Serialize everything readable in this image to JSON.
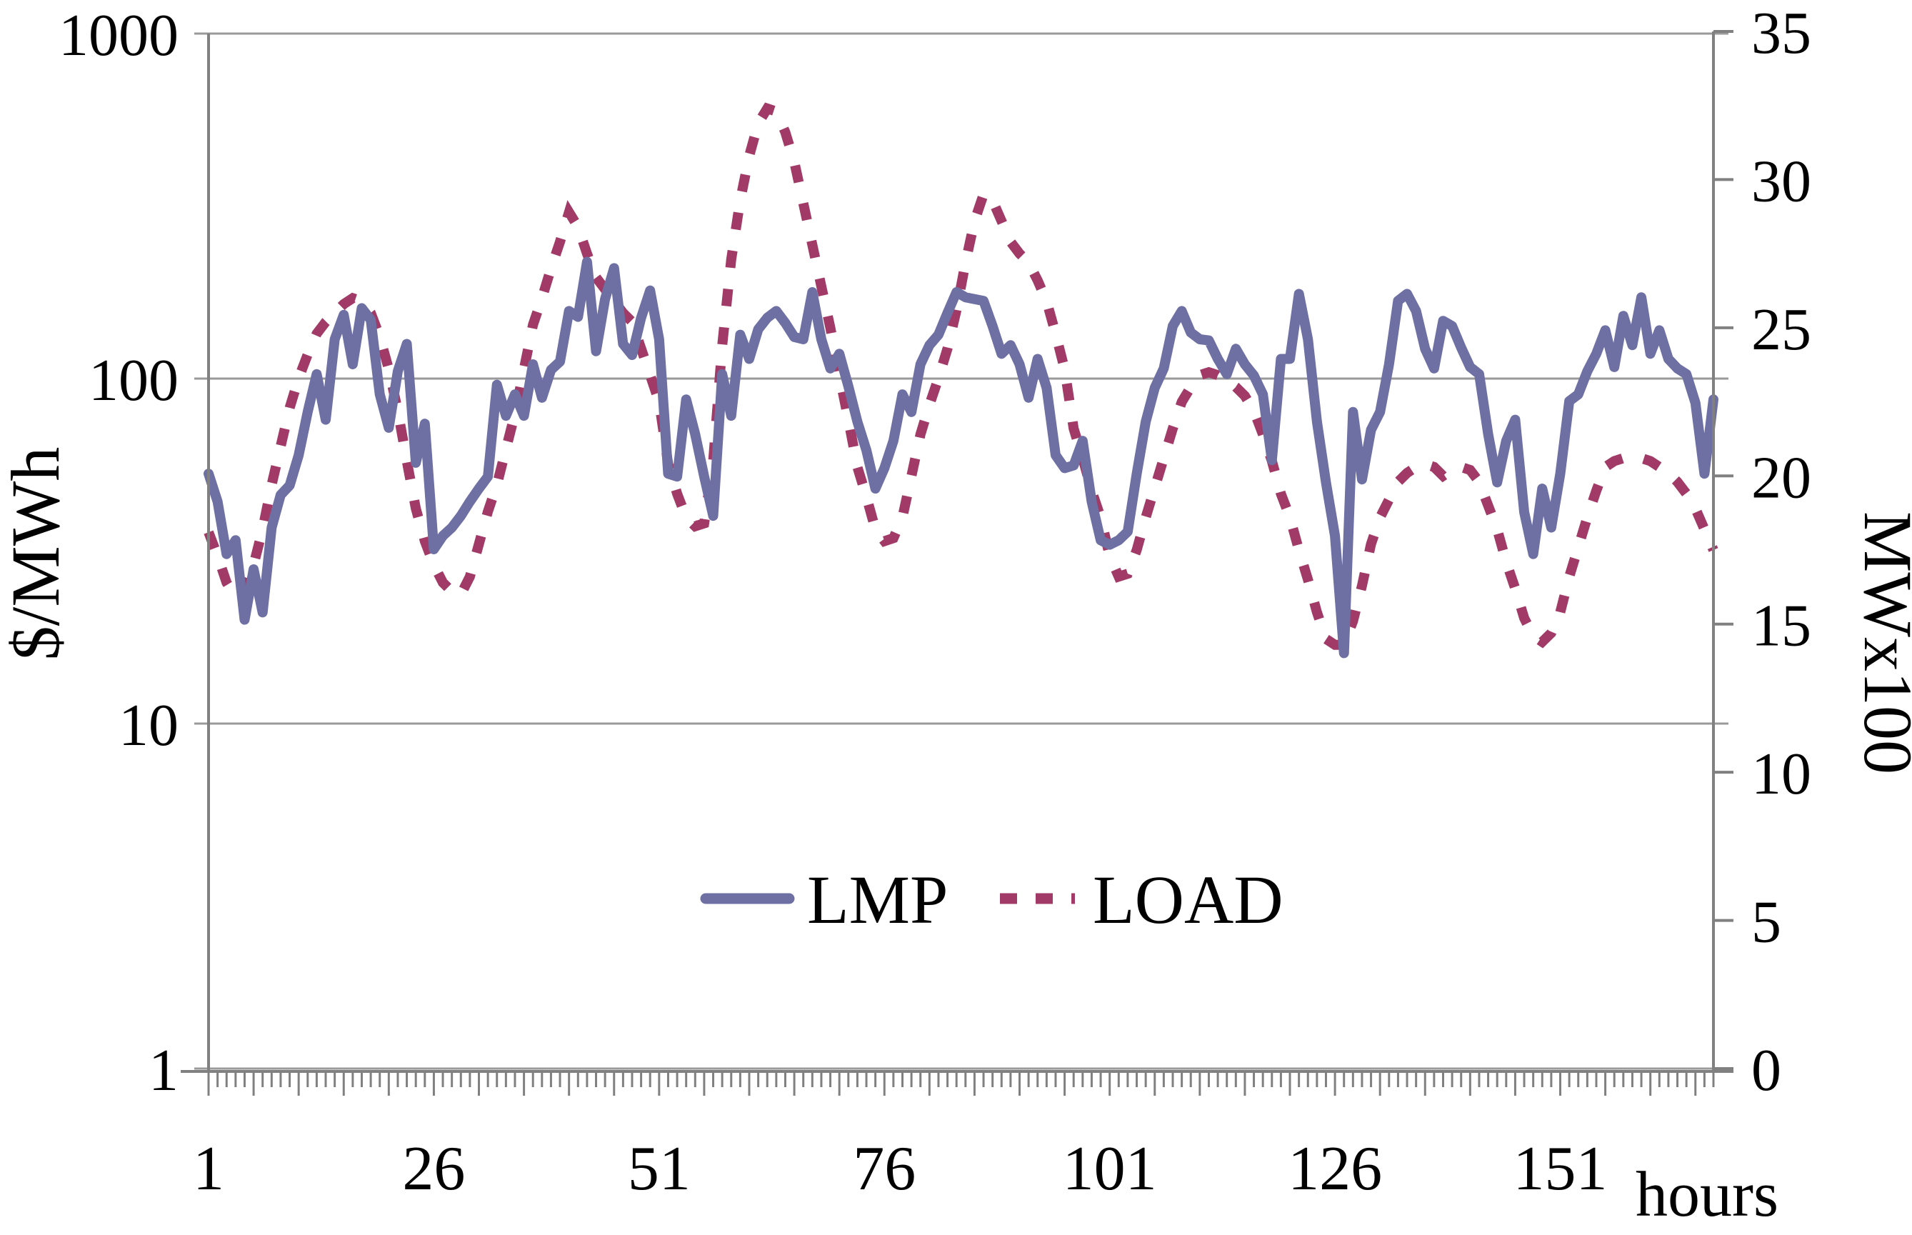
{
  "chart_data": {
    "type": "line",
    "title": "",
    "xlabel": "hours",
    "left_ylabel": "$/MWh",
    "right_ylabel": "MWx100",
    "left_axis": {
      "scale": "log",
      "ticks": [
        1,
        10,
        100,
        1000
      ],
      "range": [
        1,
        1000
      ]
    },
    "right_axis": {
      "scale": "linear",
      "min": 0,
      "max": 35,
      "tick_step": 5,
      "ticks": [
        0,
        5,
        10,
        15,
        20,
        25,
        30,
        35
      ]
    },
    "x_axis": {
      "tick_labels": [
        1,
        26,
        51,
        76,
        101,
        126,
        151
      ],
      "hours": 168,
      "minor_tick_every": 1,
      "major_tick_every": 5
    },
    "grid": "horizontal-only",
    "legend_position": "center-inside",
    "colors": {
      "lmp": "#6E6FA3",
      "load": "#A13A66",
      "axis": "#808080",
      "gridline": "#9a9a9a",
      "text": "#000000"
    },
    "series": [
      {
        "name": "LMP",
        "axis": "left",
        "style": "solid",
        "values": [
          53,
          44,
          31,
          34,
          20,
          28,
          21,
          37,
          46,
          49,
          60,
          80,
          103,
          76,
          130,
          153,
          110,
          160,
          148,
          90,
          72,
          105,
          126,
          57,
          74,
          32,
          35,
          37,
          40,
          44,
          48,
          52,
          96,
          78,
          90,
          78,
          110,
          88,
          106,
          112,
          157,
          151,
          218,
          120,
          170,
          209,
          126,
          117,
          150,
          180,
          130,
          53,
          52,
          87,
          69,
          52,
          40,
          103,
          78,
          134,
          114,
          139,
          150,
          157,
          145,
          132,
          130,
          178,
          130,
          107,
          118,
          95,
          75,
          62,
          48,
          55,
          66,
          90,
          80,
          110,
          125,
          134,
          155,
          178,
          172,
          170,
          168,
          142,
          118,
          125,
          110,
          88,
          114,
          94,
          60,
          55,
          56,
          66,
          44,
          34,
          33,
          34,
          36,
          53,
          75,
          94,
          107,
          142,
          157,
          136,
          130,
          129,
          114,
          103,
          122,
          110,
          102,
          90,
          58,
          114,
          114,
          176,
          130,
          75,
          50,
          35,
          16,
          80,
          51,
          71,
          80,
          110,
          168,
          176,
          157,
          122,
          107,
          147,
          142,
          123,
          108,
          103,
          69,
          50,
          66,
          76,
          41,
          31,
          48,
          37,
          53,
          86,
          90,
          105,
          118,
          138,
          108,
          152,
          125,
          172,
          118,
          138,
          114,
          107,
          103,
          85,
          53,
          87
        ]
      },
      {
        "name": "LOAD",
        "axis": "right",
        "style": "dashed",
        "values": [
          18.1,
          17.3,
          16.4,
          15.9,
          16.2,
          17.0,
          18.2,
          19.7,
          21.0,
          22.3,
          23.3,
          24.1,
          24.8,
          25.2,
          25.5,
          25.8,
          26.0,
          25.9,
          25.5,
          24.7,
          23.6,
          22.2,
          20.5,
          18.9,
          17.8,
          17.0,
          16.4,
          16.1,
          16.0,
          16.6,
          17.7,
          18.8,
          19.7,
          20.9,
          22.1,
          23.6,
          25.1,
          26.0,
          27.0,
          27.9,
          28.9,
          28.4,
          27.5,
          26.7,
          26.3,
          25.9,
          25.5,
          25.2,
          24.3,
          23.4,
          22.5,
          20.4,
          19.4,
          18.6,
          18.3,
          18.4,
          20.5,
          24.4,
          27.3,
          29.3,
          30.8,
          31.9,
          32.4,
          32.3,
          31.6,
          30.6,
          29.2,
          27.8,
          26.4,
          25.0,
          23.4,
          21.9,
          20.3,
          19.3,
          18.2,
          17.8,
          17.9,
          18.6,
          20.0,
          21.4,
          22.4,
          23.3,
          24.3,
          25.6,
          27.2,
          28.6,
          29.5,
          29.3,
          28.6,
          27.9,
          27.5,
          27.2,
          26.6,
          25.9,
          24.8,
          23.6,
          21.6,
          20.6,
          19.5,
          18.6,
          17.3,
          16.6,
          16.7,
          17.5,
          18.6,
          19.6,
          20.6,
          21.6,
          22.5,
          23.0,
          23.4,
          23.5,
          23.4,
          23.2,
          23.0,
          22.7,
          22.2,
          21.4,
          20.5,
          19.4,
          18.6,
          17.5,
          16.5,
          15.4,
          14.5,
          14.3,
          14.3,
          15.1,
          16.3,
          17.7,
          18.6,
          19.2,
          19.8,
          20.1,
          20.3,
          20.4,
          20.3,
          20.0,
          20.2,
          20.3,
          20.2,
          19.8,
          19.0,
          18.2,
          17.1,
          16.2,
          15.2,
          14.6,
          14.4,
          14.7,
          15.4,
          16.6,
          17.6,
          18.6,
          19.5,
          20.3,
          20.5,
          20.6,
          20.6,
          20.6,
          20.5,
          20.3,
          20.1,
          19.8,
          19.4,
          18.9,
          18.2,
          17.5
        ]
      }
    ]
  }
}
